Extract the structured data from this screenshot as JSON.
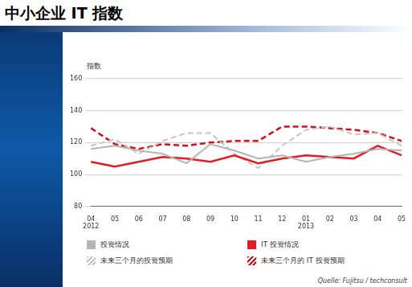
{
  "chart_data": {
    "type": "line",
    "title": "中小企业 IT 指数",
    "y_label": "指数",
    "source": "Quelle: Fujitsu / techconsult",
    "categories": [
      [
        "04",
        "2012"
      ],
      "05",
      "06",
      "07",
      "08",
      "09",
      "10",
      "11",
      "12",
      [
        "01",
        "2013"
      ],
      "02",
      "03",
      "04",
      "05"
    ],
    "series": [
      {
        "name": "投资情况",
        "color": "#b4b4b4",
        "line_style": "solid",
        "values": [
          116,
          118,
          115,
          113,
          107,
          119,
          115,
          110,
          112,
          108,
          111,
          113,
          116,
          115
        ]
      },
      {
        "name": "IT 投资情况",
        "color": "#e31b23",
        "line_style": "solid",
        "values": [
          108,
          105,
          108,
          111,
          110,
          108,
          112,
          107,
          110,
          112,
          111,
          110,
          118,
          112
        ]
      },
      {
        "name": "未来三个月的投资预期",
        "color": "#c4c4c4",
        "line_style": "dashed",
        "values": [
          118,
          122,
          113,
          121,
          126,
          126,
          113,
          104,
          118,
          128,
          130,
          125,
          126,
          118
        ]
      },
      {
        "name": "未来三个月的 IT 投资预期",
        "color": "#d0101a",
        "line_style": "dashed",
        "values": [
          129,
          119,
          116,
          119,
          118,
          120,
          121,
          121,
          130,
          130,
          129,
          128,
          126,
          121
        ]
      }
    ],
    "ylim": [
      80,
      160
    ],
    "yticks": [
      80,
      100,
      120,
      140,
      160
    ],
    "grid": true,
    "legend": "bottom"
  }
}
